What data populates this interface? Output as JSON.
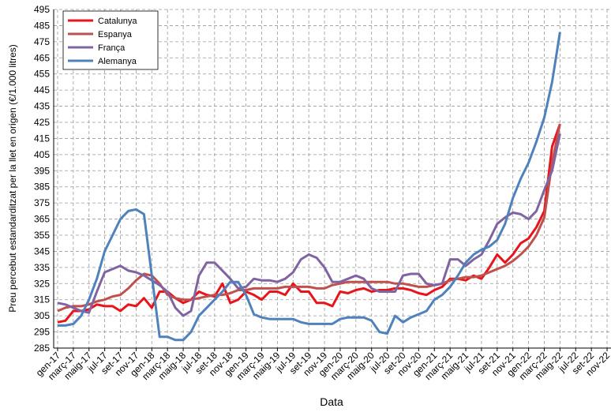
{
  "chart_data": {
    "type": "line",
    "x_label": "Data",
    "y_label": "Preu percebut estandarditzat per la llet en origen (€/1.000 litres)",
    "categories": [
      "gen-17",
      null,
      "març-17",
      null,
      "maig-17",
      null,
      "jul-17",
      null,
      "set-17",
      null,
      "nov-17",
      null,
      "gen-18",
      null,
      "març-18",
      null,
      "maig-18",
      null,
      "jul-18",
      null,
      "set-18",
      null,
      "nov-18",
      null,
      "gen-19",
      null,
      "març-19",
      null,
      "maig-19",
      null,
      "jul-19",
      null,
      "set-19",
      null,
      "nov-19",
      null,
      "gen-20",
      null,
      "març-20",
      null,
      "maig-20",
      null,
      "jul-20",
      null,
      "set-20",
      null,
      "nov-20",
      null,
      "gen-21",
      null,
      "març-21",
      null,
      "maig-21",
      null,
      "jul-21",
      null,
      "set-21",
      null,
      "nov-21",
      null,
      "gen-22",
      null,
      "març-22",
      null,
      "maig-22",
      null,
      "jul-22",
      null,
      "set-22",
      null,
      "nov-22"
    ],
    "series": [
      {
        "name": "Catalunya",
        "color": "#e8141c",
        "values": [
          301,
          302,
          308,
          308,
          309,
          312,
          311,
          311,
          308,
          312,
          311,
          316,
          310,
          320,
          320,
          316,
          313,
          315,
          320,
          318,
          317,
          325,
          313,
          315,
          320,
          318,
          315,
          320,
          320,
          318,
          325,
          320,
          320,
          313,
          313,
          311,
          320,
          319,
          321,
          322,
          320,
          321,
          321,
          322,
          322,
          321,
          319,
          318,
          321,
          323,
          328,
          328,
          327,
          330,
          328,
          335,
          343,
          338,
          343,
          350,
          353,
          360,
          370,
          410,
          424,
          null,
          null,
          null,
          null,
          null,
          null
        ]
      },
      {
        "name": "Espanya",
        "color": "#c0504d",
        "values": [
          308,
          310,
          311,
          311,
          312,
          314,
          315,
          317,
          318,
          322,
          327,
          331,
          330,
          325,
          318,
          316,
          315,
          315,
          316,
          317,
          318,
          318,
          319,
          321,
          321,
          322,
          322,
          322,
          322,
          323,
          323,
          323,
          323,
          322,
          322,
          324,
          325,
          326,
          326,
          326,
          326,
          326,
          326,
          325,
          325,
          324,
          323,
          323,
          324,
          325,
          327,
          328,
          329,
          329,
          330,
          332,
          334,
          336,
          339,
          343,
          348,
          355,
          366,
          400,
          424,
          null,
          null,
          null,
          null,
          null,
          null
        ]
      },
      {
        "name": "França",
        "color": "#8064a2",
        "values": [
          313,
          312,
          310,
          308,
          307,
          320,
          332,
          334,
          336,
          333,
          332,
          330,
          327,
          324,
          320,
          310,
          305,
          308,
          330,
          338,
          338,
          333,
          328,
          322,
          323,
          328,
          327,
          327,
          326,
          328,
          332,
          340,
          343,
          341,
          335,
          326,
          326,
          328,
          330,
          328,
          322,
          320,
          320,
          320,
          330,
          331,
          331,
          325,
          324,
          325,
          340,
          340,
          336,
          340,
          343,
          352,
          362,
          366,
          369,
          368,
          365,
          370,
          383,
          395,
          418,
          null,
          null,
          null,
          null,
          null,
          null
        ]
      },
      {
        "name": "Alemanya",
        "color": "#4f81bd",
        "values": [
          299,
          299,
          300,
          305,
          315,
          328,
          345,
          355,
          365,
          370,
          371,
          368,
          330,
          292,
          292,
          290,
          290,
          295,
          305,
          310,
          315,
          320,
          326,
          326,
          318,
          306,
          304,
          303,
          303,
          303,
          303,
          301,
          300,
          300,
          300,
          300,
          303,
          304,
          304,
          304,
          302,
          295,
          294,
          305,
          301,
          304,
          306,
          308,
          315,
          318,
          323,
          330,
          338,
          343,
          346,
          348,
          352,
          362,
          378,
          390,
          400,
          413,
          428,
          450,
          481,
          null,
          null,
          null,
          null,
          null,
          null
        ]
      }
    ],
    "ylim": [
      285,
      495
    ],
    "yticks": [
      285,
      295,
      305,
      315,
      325,
      335,
      345,
      355,
      365,
      375,
      385,
      395,
      405,
      415,
      425,
      435,
      445,
      455,
      465,
      475,
      485,
      495
    ],
    "grid": true,
    "legend": "upper left"
  }
}
